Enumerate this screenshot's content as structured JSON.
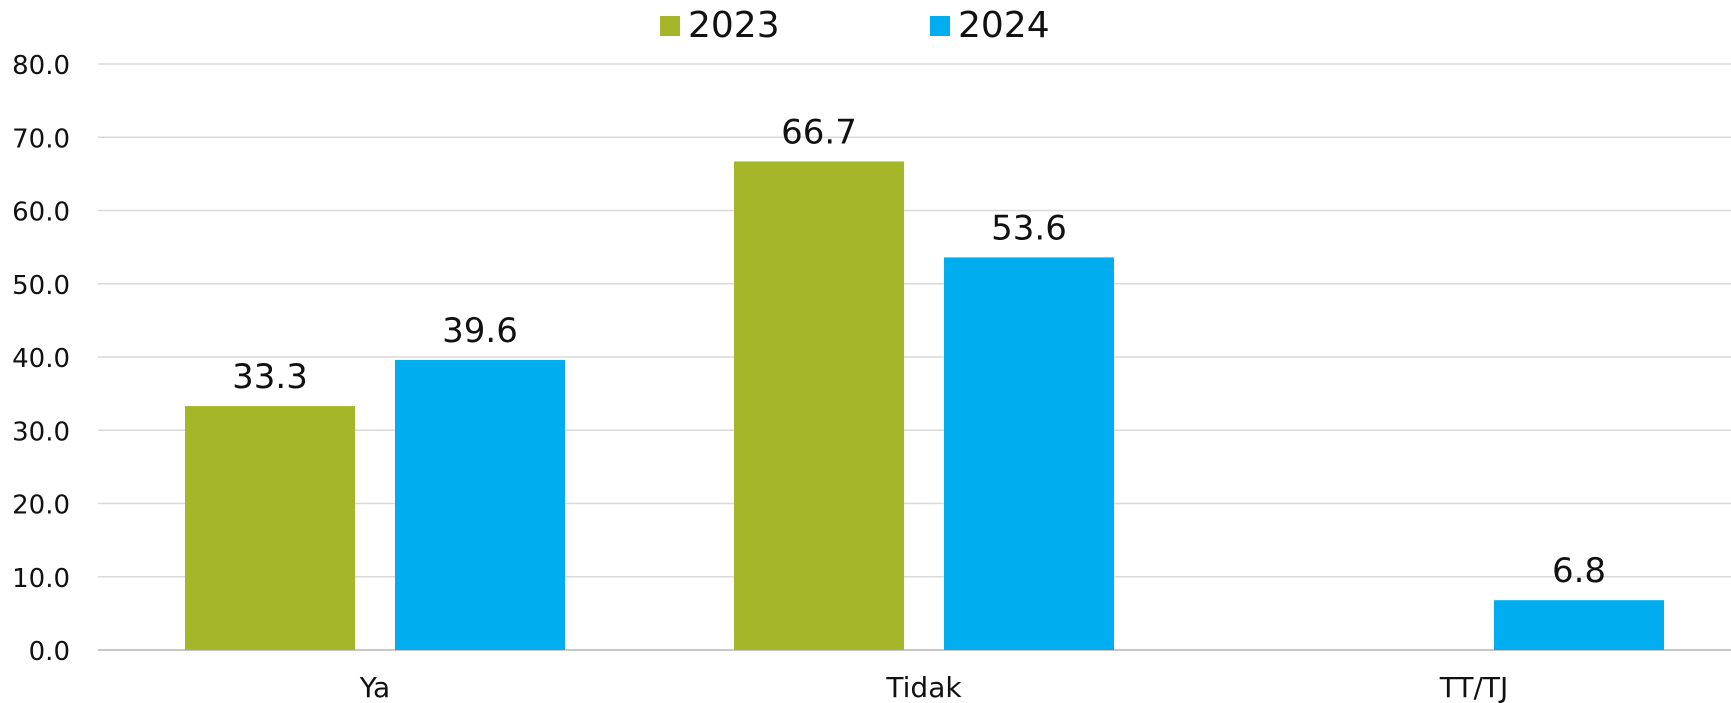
{
  "chart_data": {
    "type": "bar",
    "categories": [
      "Ya",
      "Tidak",
      "TT/TJ"
    ],
    "series": [
      {
        "name": "2023",
        "values": [
          33.3,
          66.7,
          null
        ],
        "labels": [
          "33.3",
          "66.7",
          ""
        ]
      },
      {
        "name": "2024",
        "values": [
          39.6,
          53.6,
          6.8
        ],
        "labels": [
          "39.6",
          "53.6",
          "6.8"
        ]
      }
    ],
    "colors": {
      "2023": "#a5b728",
      "2024": "#00aeef"
    },
    "ylim": [
      0,
      80
    ],
    "yticks": [
      "0.0",
      "10.0",
      "20.0",
      "30.0",
      "40.0",
      "50.0",
      "60.0",
      "70.0",
      "80.0"
    ],
    "grid": true,
    "legend_position": "top-center",
    "title": "",
    "xlabel": "",
    "ylabel": ""
  }
}
